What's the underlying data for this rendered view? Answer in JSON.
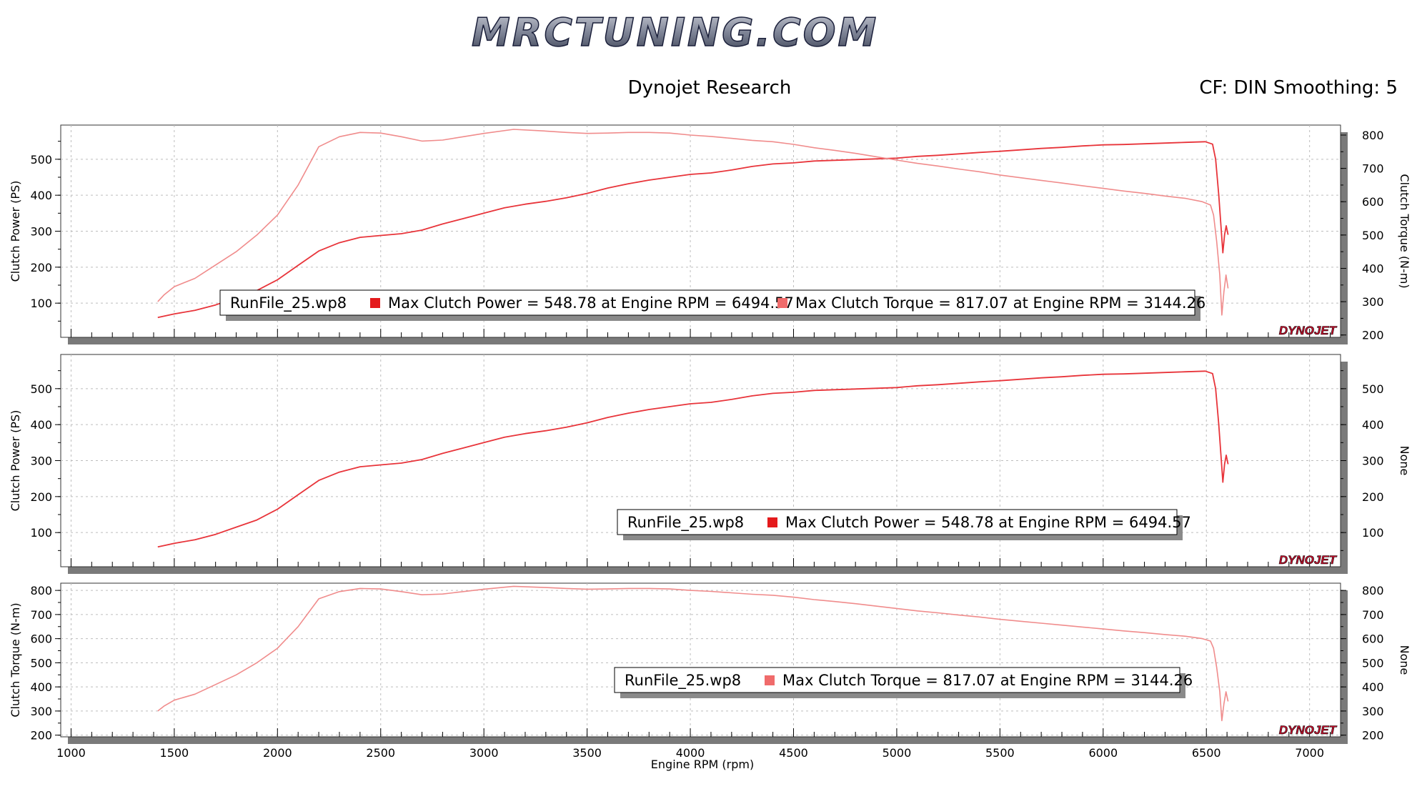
{
  "header": {
    "logo_text": "MRCTUNING.COM",
    "title": "Dynojet Research",
    "settings": "CF: DIN Smoothing: 5",
    "watermark": "DYNOJET"
  },
  "colors": {
    "power": "#e8343a",
    "torque": "#f08c8c",
    "legend_power_square": "#e41a1c",
    "legend_torque_square": "#f06b6b",
    "frame_shadow": "#7a7a7a"
  },
  "chart_data": [
    {
      "type": "line",
      "xlabel": "",
      "ylabel": "Clutch Power (PS)",
      "y2label": "Clutch Torque (N-m)",
      "xlim": [
        950,
        7150
      ],
      "ylim": [
        5,
        595
      ],
      "y2lim": [
        193,
        830
      ],
      "yticks": [
        100,
        200,
        300,
        400,
        500
      ],
      "y2ticks": [
        200,
        300,
        400,
        500,
        600,
        700,
        800
      ],
      "grid": true,
      "legend": {
        "file": "RunFile_25.wp8",
        "entries": [
          "Max Clutch Power = 548.78 at Engine RPM = 6494.57",
          "Max Clutch Torque = 817.07 at Engine RPM = 3144.26"
        ]
      },
      "series": [
        {
          "key": "power",
          "axis": "left"
        },
        {
          "key": "torque",
          "axis": "right"
        }
      ]
    },
    {
      "type": "line",
      "xlabel": "",
      "ylabel": "Clutch Power (PS)",
      "y2label": "None",
      "xlim": [
        950,
        7150
      ],
      "ylim": [
        5,
        595
      ],
      "yticks": [
        100,
        200,
        300,
        400,
        500
      ],
      "y2ticks": [
        100,
        200,
        300,
        400,
        500
      ],
      "grid": true,
      "legend": {
        "file": "RunFile_25.wp8",
        "entries": [
          "Max Clutch Power = 548.78 at Engine RPM = 6494.57"
        ]
      },
      "series": [
        {
          "key": "power",
          "axis": "left"
        }
      ]
    },
    {
      "type": "line",
      "xlabel": "Engine RPM (rpm)",
      "ylabel": "Clutch Torque (N-m)",
      "y2label": "None",
      "xlim": [
        950,
        7150
      ],
      "ylim": [
        193,
        830
      ],
      "yticks": [
        200,
        300,
        400,
        500,
        600,
        700,
        800
      ],
      "y2ticks": [
        200,
        300,
        400,
        500,
        600,
        700,
        800
      ],
      "xticks": [
        1000,
        1500,
        2000,
        2500,
        3000,
        3500,
        4000,
        4500,
        5000,
        5500,
        6000,
        6500,
        7000
      ],
      "grid": true,
      "legend": {
        "file": "RunFile_25.wp8",
        "entries": [
          "Max Clutch Torque = 817.07 at Engine RPM = 3144.26"
        ]
      },
      "series": [
        {
          "key": "torque",
          "axis": "left"
        }
      ]
    }
  ],
  "series_data": {
    "power": {
      "name": "Max Clutch Power",
      "x": [
        1420,
        1500,
        1600,
        1700,
        1800,
        1900,
        2000,
        2100,
        2200,
        2300,
        2400,
        2500,
        2600,
        2700,
        2800,
        2900,
        3000,
        3100,
        3200,
        3300,
        3400,
        3500,
        3600,
        3700,
        3800,
        3900,
        4000,
        4100,
        4200,
        4300,
        4400,
        4500,
        4600,
        4700,
        4800,
        4900,
        5000,
        5100,
        5200,
        5300,
        5400,
        5500,
        5600,
        5700,
        5800,
        5900,
        6000,
        6100,
        6200,
        6300,
        6400,
        6495,
        6530,
        6545,
        6560,
        6572,
        6580,
        6588,
        6596,
        6605
      ],
      "y": [
        60,
        70,
        80,
        95,
        115,
        135,
        165,
        205,
        245,
        268,
        283,
        288,
        293,
        303,
        320,
        335,
        350,
        365,
        375,
        383,
        393,
        405,
        420,
        432,
        442,
        450,
        458,
        462,
        470,
        480,
        487,
        490,
        495,
        497,
        499,
        501,
        503,
        508,
        511,
        515,
        519,
        522,
        526,
        530,
        533,
        537,
        540,
        541,
        543,
        545,
        547,
        548.78,
        542,
        500,
        400,
        305,
        240,
        290,
        315,
        290
      ]
    },
    "torque": {
      "name": "Max Clutch Torque",
      "x": [
        1420,
        1450,
        1500,
        1600,
        1700,
        1800,
        1900,
        2000,
        2100,
        2200,
        2300,
        2400,
        2500,
        2600,
        2700,
        2800,
        2900,
        3000,
        3144,
        3300,
        3400,
        3500,
        3600,
        3700,
        3800,
        3900,
        4000,
        4100,
        4200,
        4300,
        4400,
        4500,
        4600,
        4700,
        4800,
        4900,
        5000,
        5100,
        5200,
        5300,
        5400,
        5500,
        5600,
        5700,
        5800,
        5900,
        6000,
        6100,
        6200,
        6300,
        6400,
        6480,
        6520,
        6535,
        6550,
        6565,
        6575,
        6585,
        6595,
        6605
      ],
      "y": [
        300,
        320,
        345,
        370,
        410,
        450,
        500,
        560,
        650,
        765,
        795,
        808,
        806,
        795,
        782,
        785,
        795,
        805,
        817.07,
        812,
        808,
        805,
        806,
        808,
        808,
        806,
        800,
        796,
        790,
        784,
        780,
        772,
        762,
        754,
        745,
        735,
        725,
        715,
        707,
        698,
        690,
        680,
        672,
        664,
        656,
        648,
        640,
        632,
        625,
        617,
        610,
        600,
        590,
        560,
        480,
        380,
        260,
        330,
        380,
        340
      ]
    }
  }
}
